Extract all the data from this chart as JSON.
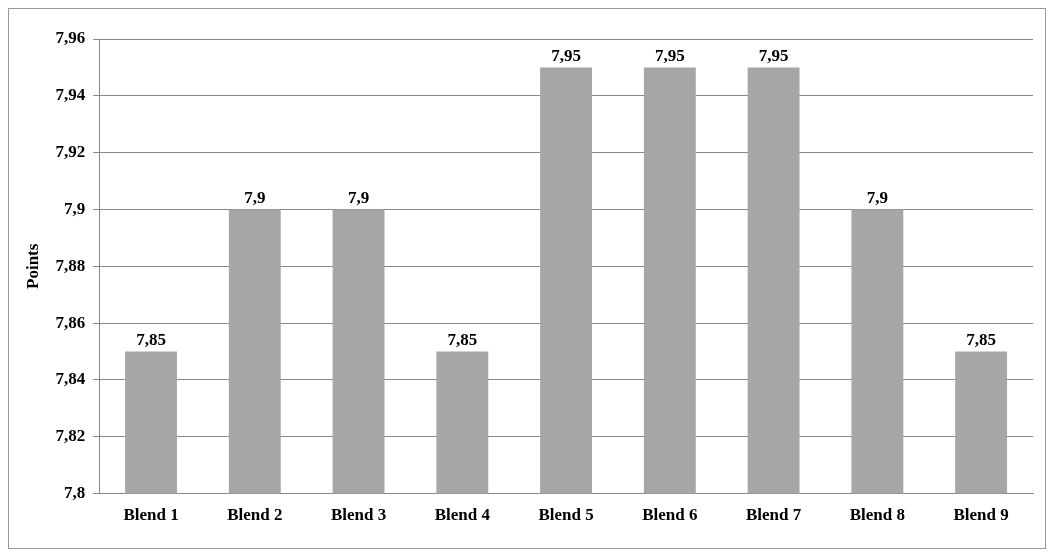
{
  "chart_data": {
    "type": "bar",
    "ylabel": "Points",
    "categories": [
      "Blend 1",
      "Blend 2",
      "Blend 3",
      "Blend 4",
      "Blend 5",
      "Blend 6",
      "Blend 7",
      "Blend 8",
      "Blend 9"
    ],
    "values": [
      7.85,
      7.9,
      7.9,
      7.85,
      7.95,
      7.95,
      7.95,
      7.9,
      7.85
    ],
    "value_labels": [
      "7,85",
      "7,9",
      "7,9",
      "7,85",
      "7,95",
      "7,95",
      "7,95",
      "7,9",
      "7,85"
    ],
    "color": "#a6a6a6",
    "ylim": [
      7.8,
      7.96
    ],
    "yticks": [
      {
        "value": 7.8,
        "label": "7,8"
      },
      {
        "value": 7.82,
        "label": "7,82"
      },
      {
        "value": 7.84,
        "label": "7,84"
      },
      {
        "value": 7.86,
        "label": "7,86"
      },
      {
        "value": 7.88,
        "label": "7,88"
      },
      {
        "value": 7.9,
        "label": "7,9"
      },
      {
        "value": 7.92,
        "label": "7,92"
      },
      {
        "value": 7.94,
        "label": "7,94"
      },
      {
        "value": 7.96,
        "label": "7,96"
      }
    ],
    "grid": "y",
    "legend": false
  }
}
